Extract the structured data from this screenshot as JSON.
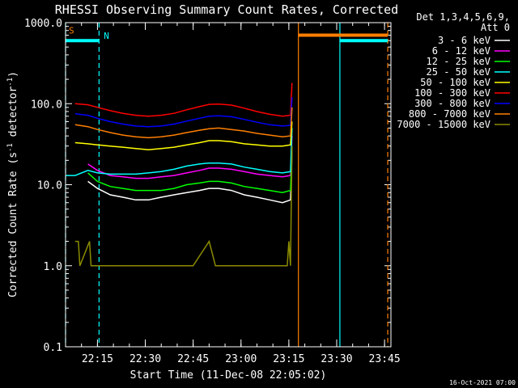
{
  "chart_data": {
    "type": "line",
    "title": "RHESSI Observing Summary Count Rates, Corrected",
    "xlabel": "Start Time (11-Dec-08 22:05:02)",
    "ylabel": "Corrected Count Rate (s⁻¹ detector⁻¹)",
    "ylabel_parts": {
      "main": "Corrected Count Rate (s",
      "sup1": "-1",
      "mid": " detector",
      "sup2": "-1",
      "end": ")"
    },
    "y_scale": "log",
    "ylim": [
      0.1,
      1000
    ],
    "xlim_minutes": [
      0,
      102
    ],
    "x_ticks": [
      {
        "t": 10,
        "label": "22:15"
      },
      {
        "t": 25,
        "label": "22:30"
      },
      {
        "t": 40,
        "label": "22:45"
      },
      {
        "t": 55,
        "label": "23:00"
      },
      {
        "t": 70,
        "label": "23:15"
      },
      {
        "t": 85,
        "label": "23:30"
      },
      {
        "t": 100,
        "label": "23:45"
      }
    ],
    "y_ticks": [
      {
        "v": 0.1,
        "label": "0.1"
      },
      {
        "v": 1,
        "label": "1.0"
      },
      {
        "v": 10,
        "label": "10.0"
      },
      {
        "v": 100,
        "label": "100.0"
      },
      {
        "v": 1000,
        "label": "1000.0"
      }
    ],
    "legend": {
      "placement": "right",
      "header": [
        "Det 1,3,4,5,6,9,",
        "Att 0"
      ]
    },
    "series": [
      {
        "name": "3 - 6 keV",
        "color": "#ffffff",
        "x": [
          7,
          10,
          14,
          18,
          22,
          26,
          30,
          34,
          38,
          42,
          45,
          48,
          52,
          56,
          60,
          64,
          68,
          70.5,
          71
        ],
        "y": [
          11,
          9,
          7.5,
          7,
          6.5,
          6.5,
          7,
          7.5,
          8,
          8.5,
          9,
          9,
          8.5,
          7.5,
          7,
          6.5,
          6,
          6.5,
          25
        ]
      },
      {
        "name": "6 - 12 keV",
        "color": "#ff00ff",
        "x": [
          7,
          10,
          14,
          18,
          22,
          26,
          30,
          34,
          38,
          42,
          45,
          48,
          52,
          56,
          60,
          64,
          68,
          70.5,
          71
        ],
        "y": [
          18,
          15,
          13,
          12.5,
          12,
          12,
          12.5,
          13,
          14,
          15,
          16,
          16,
          15.5,
          14.5,
          13.5,
          13,
          12.5,
          13,
          40
        ]
      },
      {
        "name": "12 - 25 keV",
        "color": "#00ff00",
        "x": [
          7,
          10,
          14,
          18,
          22,
          26,
          30,
          34,
          38,
          42,
          45,
          48,
          52,
          56,
          60,
          64,
          68,
          70.5,
          71
        ],
        "y": [
          14,
          11,
          9.5,
          9,
          8.5,
          8.5,
          8.5,
          9,
          10,
          10.5,
          11,
          11,
          10.5,
          9.5,
          9,
          8.5,
          8,
          8.5,
          30
        ]
      },
      {
        "name": "25 - 50 keV",
        "color": "#00ffff",
        "x": [
          0,
          3,
          7,
          10,
          14,
          18,
          22,
          26,
          30,
          34,
          38,
          42,
          45,
          48,
          52,
          56,
          60,
          64,
          68,
          70.5,
          71
        ],
        "y": [
          13,
          13,
          15,
          14,
          13.5,
          13.5,
          13.5,
          14,
          14.5,
          15.5,
          17,
          18,
          18.5,
          18.5,
          18,
          16.5,
          15.5,
          14.5,
          14,
          14.5,
          50
        ]
      },
      {
        "name": "50 - 100 keV",
        "color": "#ffff00",
        "x": [
          3,
          7,
          10,
          14,
          18,
          22,
          26,
          30,
          34,
          38,
          42,
          45,
          48,
          52,
          56,
          60,
          64,
          68,
          70.5,
          71
        ],
        "y": [
          33,
          32,
          31,
          30,
          29,
          28,
          27,
          28,
          29,
          31,
          33,
          35,
          35,
          34,
          32,
          31,
          30,
          30,
          31,
          60
        ]
      },
      {
        "name": "100 - 300 keV",
        "color": "#ff0000",
        "x": [
          3,
          7,
          10,
          14,
          18,
          22,
          26,
          30,
          34,
          38,
          42,
          45,
          48,
          52,
          56,
          60,
          64,
          68,
          70.5,
          71
        ],
        "y": [
          100,
          97,
          90,
          82,
          76,
          72,
          70,
          72,
          76,
          84,
          92,
          98,
          99,
          96,
          88,
          80,
          74,
          70,
          72,
          180
        ]
      },
      {
        "name": "300 - 800 keV",
        "color": "#0000ff",
        "x": [
          3,
          7,
          10,
          14,
          18,
          22,
          26,
          30,
          34,
          38,
          42,
          45,
          48,
          52,
          56,
          60,
          64,
          68,
          70.5,
          71
        ],
        "y": [
          75,
          72,
          66,
          60,
          56,
          53,
          52,
          53,
          56,
          61,
          66,
          70,
          71,
          69,
          64,
          59,
          55,
          53,
          54,
          120
        ]
      },
      {
        "name": "800 - 7000 keV",
        "color": "#ff7f00",
        "x": [
          3,
          7,
          10,
          14,
          18,
          22,
          26,
          30,
          34,
          38,
          42,
          45,
          48,
          52,
          56,
          60,
          64,
          68,
          70.5,
          71
        ],
        "y": [
          55,
          52,
          48,
          44,
          41,
          39,
          38,
          39,
          41,
          44,
          47,
          49,
          50,
          48,
          46,
          43,
          41,
          39,
          40,
          90
        ]
      },
      {
        "name": "7000 - 15000 keV",
        "color": "#8b8b00",
        "x": [
          3,
          4,
          4.5,
          7.5,
          8,
          11,
          13,
          40,
          45,
          47,
          55,
          60,
          64,
          68,
          69.5,
          70,
          70.5,
          71
        ],
        "y": [
          2,
          2,
          1,
          2,
          1,
          1,
          1,
          1,
          2,
          1,
          1,
          1,
          1,
          1,
          1,
          2,
          1,
          30
        ]
      }
    ],
    "annotations": [
      {
        "label": "S",
        "color": "#ff7f00",
        "t": 1,
        "v": 700
      },
      {
        "label": "N",
        "color": "#00ffff",
        "t": 12,
        "v": 600
      }
    ],
    "status_bars": [
      {
        "color": "#00ffff",
        "t0": 0,
        "t1": 10.5,
        "v": 600
      },
      {
        "color": "#ff7f00",
        "t0": 73,
        "t1": 101,
        "v": 700
      },
      {
        "color": "#00ffff",
        "t0": 86,
        "t1": 101,
        "v": 600
      }
    ],
    "vlines": [
      {
        "t": 0,
        "color": "#00ffff",
        "dash": true
      },
      {
        "t": 10.5,
        "color": "#00ffff",
        "dash": true
      },
      {
        "t": 73,
        "color": "#ff7f00",
        "dash": false
      },
      {
        "t": 86,
        "color": "#00ffff",
        "dash": false
      },
      {
        "t": 101,
        "color": "#ff7f00",
        "dash": true
      }
    ],
    "footer": "16-Oct-2021 07:00"
  }
}
